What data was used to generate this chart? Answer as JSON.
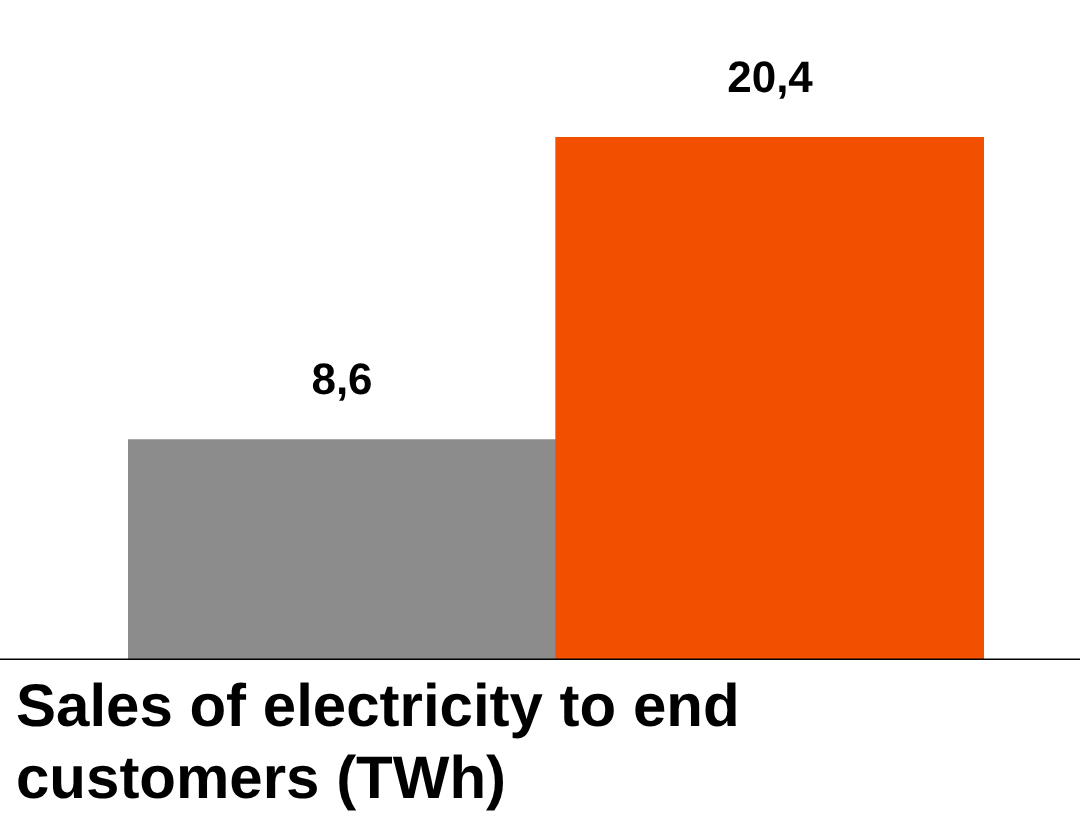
{
  "chart_data": {
    "type": "bar",
    "title": "Sales of electricity to end customers (TWh)",
    "categories": [
      null,
      null
    ],
    "values": [
      8.6,
      20.4
    ],
    "colors": [
      "#8c8c8c",
      "#f25000"
    ],
    "value_labels": [
      "8,6",
      "20,4"
    ],
    "tick_labels": false,
    "legend": false
  }
}
